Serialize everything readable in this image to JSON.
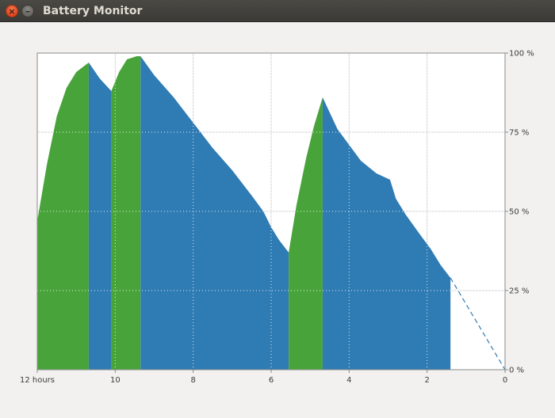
{
  "window": {
    "title": "Battery Monitor",
    "close_glyph": "×",
    "minimize_glyph": "–",
    "close_icon": "close-icon",
    "minimize_icon": "minimize-icon"
  },
  "colors": {
    "charging": "#48a43a",
    "discharging": "#2f7bb3",
    "prediction": "#2f7bb3",
    "grid_solid": "#d6d6d6",
    "grid_dotted": "#ffffff",
    "frame": "#8a8a8a",
    "plot_bg": "#ffffff"
  },
  "chart_data": {
    "type": "area",
    "title": "",
    "xlabel": "",
    "ylabel": "",
    "x_axis": {
      "range": [
        12,
        0
      ],
      "ticks": [
        {
          "value": 12,
          "label": "12 hours"
        },
        {
          "value": 10,
          "label": "10"
        },
        {
          "value": 8,
          "label": "8"
        },
        {
          "value": 6,
          "label": "6"
        },
        {
          "value": 4,
          "label": "4"
        },
        {
          "value": 2,
          "label": "2"
        },
        {
          "value": 0,
          "label": "0"
        }
      ]
    },
    "y_axis": {
      "range": [
        0,
        100
      ],
      "position": "right",
      "ticks": [
        {
          "value": 100,
          "label": "100 %"
        },
        {
          "value": 75,
          "label": "75 %"
        },
        {
          "value": 50,
          "label": "50 %"
        },
        {
          "value": 25,
          "label": "25 %"
        },
        {
          "value": 0,
          "label": "0 %"
        }
      ]
    },
    "grid": true,
    "series": [
      {
        "state": "charging",
        "points": [
          [
            12.0,
            47
          ],
          [
            11.75,
            65
          ],
          [
            11.5,
            80
          ],
          [
            11.25,
            89
          ],
          [
            11.0,
            94
          ],
          [
            10.68,
            97
          ]
        ]
      },
      {
        "state": "discharging",
        "points": [
          [
            10.68,
            97
          ],
          [
            10.4,
            92
          ],
          [
            10.1,
            88
          ]
        ]
      },
      {
        "state": "charging",
        "points": [
          [
            10.1,
            88
          ],
          [
            9.9,
            94
          ],
          [
            9.7,
            98
          ],
          [
            9.45,
            99
          ],
          [
            9.35,
            99
          ]
        ]
      },
      {
        "state": "discharging",
        "points": [
          [
            9.35,
            99
          ],
          [
            9.0,
            93
          ],
          [
            8.5,
            86
          ],
          [
            8.0,
            78
          ],
          [
            7.5,
            70
          ],
          [
            7.0,
            63
          ],
          [
            6.5,
            55
          ],
          [
            6.2,
            50
          ],
          [
            6.0,
            45
          ],
          [
            5.8,
            41
          ],
          [
            5.55,
            37
          ]
        ]
      },
      {
        "state": "charging",
        "points": [
          [
            5.55,
            37
          ],
          [
            5.35,
            52
          ],
          [
            5.1,
            67
          ],
          [
            4.9,
            77
          ],
          [
            4.68,
            86
          ]
        ]
      },
      {
        "state": "discharging",
        "points": [
          [
            4.68,
            86
          ],
          [
            4.3,
            76
          ],
          [
            4.0,
            71
          ],
          [
            3.7,
            66
          ],
          [
            3.3,
            62
          ],
          [
            2.95,
            60
          ],
          [
            2.8,
            54
          ],
          [
            2.55,
            49
          ],
          [
            2.2,
            43
          ],
          [
            1.9,
            38
          ],
          [
            1.65,
            33
          ],
          [
            1.4,
            29
          ]
        ]
      }
    ],
    "prediction": {
      "points": [
        [
          1.4,
          29
        ],
        [
          0,
          0
        ]
      ],
      "style": "dashed"
    }
  }
}
